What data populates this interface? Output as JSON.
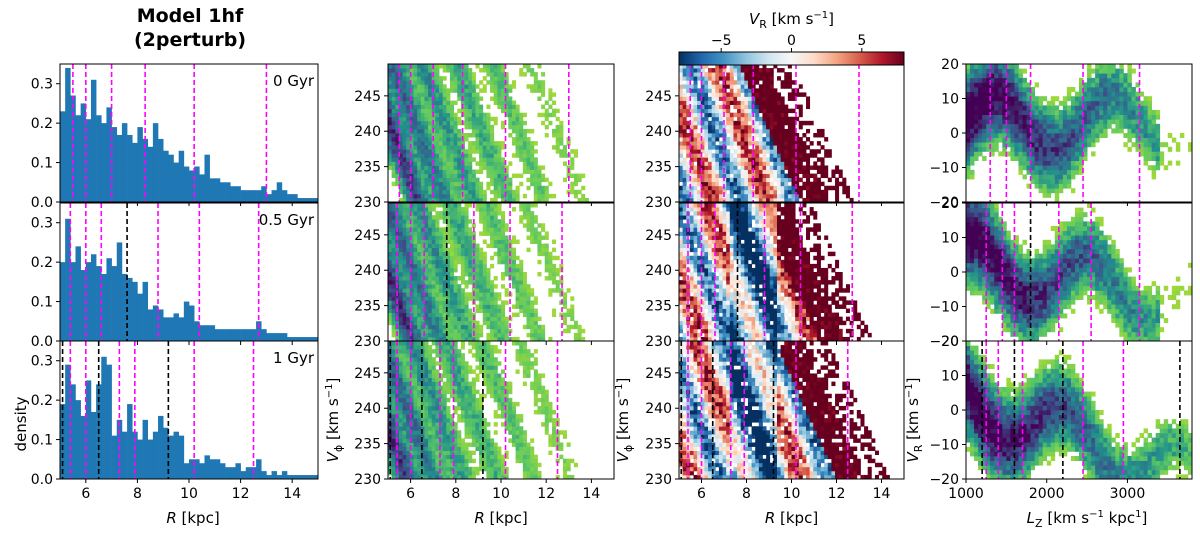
{
  "title_line1": "Model 1hf",
  "title_line2": "(2perturb)",
  "colors": {
    "hist": "#1f77b4",
    "magenta": "#ff00ff",
    "black": "#000000",
    "viridis": [
      "#440154",
      "#3b528b",
      "#21918c",
      "#5ec962",
      "#9fd83a",
      "#fde725"
    ],
    "rdbu": [
      "#053061",
      "#2166ac",
      "#4393c3",
      "#92c5de",
      "#d1e5f0",
      "#f7f7f7",
      "#fddbc7",
      "#f4a582",
      "#d6604d",
      "#b2182b",
      "#67001f"
    ]
  },
  "chart_data": [
    {
      "id": "histograms",
      "type": "bar",
      "ylabel": "density",
      "xlabel_main": "R",
      "xlabel_unit": " [kpc]",
      "xlim": [
        5,
        15
      ],
      "ylim": [
        0,
        0.35
      ],
      "xticks": [
        6,
        8,
        10,
        12,
        14
      ],
      "xtick_labels": [
        "6",
        "8",
        "10",
        "12",
        "14"
      ],
      "yticks": [
        0.0,
        0.1,
        0.2,
        0.3
      ],
      "ytick_labels": [
        "0.0",
        "0.1",
        "0.2",
        "0.3"
      ],
      "bin_edges_start": 5,
      "bin_width": 0.2,
      "rows": [
        {
          "label": "0 Gyr",
          "values": [
            0.23,
            0.34,
            0.27,
            0.22,
            0.25,
            0.21,
            0.31,
            0.22,
            0.2,
            0.24,
            0.19,
            0.17,
            0.2,
            0.17,
            0.15,
            0.19,
            0.16,
            0.14,
            0.2,
            0.16,
            0.13,
            0.12,
            0.1,
            0.13,
            0.09,
            0.08,
            0.09,
            0.07,
            0.12,
            0.06,
            0.06,
            0.05,
            0.05,
            0.04,
            0.04,
            0.03,
            0.03,
            0.03,
            0.03,
            0.04,
            0.02,
            0.03,
            0.05,
            0.03,
            0.02,
            0.02,
            0.01,
            0.01,
            0.01,
            0.01
          ],
          "magenta_lines": [
            5.5,
            6.0,
            7.0,
            8.3,
            10.2,
            13.0
          ],
          "black_lines": []
        },
        {
          "label": "0.5 Gyr",
          "values": [
            0.2,
            0.31,
            0.2,
            0.24,
            0.18,
            0.2,
            0.22,
            0.19,
            0.17,
            0.21,
            0.19,
            0.25,
            0.17,
            0.16,
            0.15,
            0.12,
            0.15,
            0.08,
            0.09,
            0.08,
            0.06,
            0.06,
            0.07,
            0.06,
            0.1,
            0.09,
            0.05,
            0.04,
            0.04,
            0.04,
            0.03,
            0.03,
            0.03,
            0.03,
            0.03,
            0.03,
            0.03,
            0.03,
            0.05,
            0.03,
            0.02,
            0.02,
            0.02,
            0.02,
            0.01,
            0.01,
            0.01,
            0.01,
            0.01,
            0.01
          ],
          "magenta_lines": [
            5.4,
            6.0,
            6.6,
            8.8,
            10.4,
            12.7
          ],
          "black_lines": [
            7.6
          ]
        },
        {
          "label": "1 Gyr",
          "values": [
            0.19,
            0.29,
            0.24,
            0.2,
            0.16,
            0.25,
            0.17,
            0.24,
            0.31,
            0.29,
            0.11,
            0.15,
            0.12,
            0.19,
            0.12,
            0.1,
            0.15,
            0.1,
            0.12,
            0.16,
            0.13,
            0.11,
            0.12,
            0.11,
            0.04,
            0.05,
            0.05,
            0.04,
            0.06,
            0.05,
            0.05,
            0.04,
            0.03,
            0.03,
            0.04,
            0.02,
            0.03,
            0.03,
            0.05,
            0.02,
            0.01,
            0.02,
            0.01,
            0.02,
            0.01,
            0.01,
            0.01,
            0.01,
            0.01,
            0.01
          ],
          "magenta_lines": [
            5.4,
            6.0,
            7.3,
            7.9,
            10.2,
            12.5
          ],
          "black_lines": [
            5.1,
            6.5,
            9.2
          ]
        }
      ]
    },
    {
      "id": "vphi_density",
      "type": "heatmap",
      "ylabel_main": "V",
      "ylabel_sub": "ϕ",
      "ylabel_unit": " [km s",
      "ylabel_exp": "−1",
      "ylabel_close": "]",
      "xlabel_main": "R",
      "xlabel_unit": " [kpc]",
      "xlim": [
        5,
        15
      ],
      "ylim": [
        230,
        249.5
      ],
      "xticks": [
        6,
        8,
        10,
        12,
        14
      ],
      "xtick_labels": [
        "6",
        "8",
        "10",
        "12",
        "14"
      ],
      "yticks": [
        230,
        235,
        240,
        245
      ],
      "ytick_labels": [
        "230",
        "235",
        "240",
        "245"
      ],
      "colormap": "viridis",
      "ridges": [
        [
          5.4,
          2.0
        ],
        [
          6.6,
          1.6
        ],
        [
          7.9,
          1.4
        ],
        [
          9.4,
          1.3
        ],
        [
          11.0,
          1.1
        ],
        [
          12.7,
          0.9
        ]
      ],
      "rows": [
        {
          "magenta_lines": [
            5.5,
            6.0,
            7.0,
            8.3,
            10.2,
            13.0
          ],
          "black_lines": []
        },
        {
          "magenta_lines": [
            5.4,
            6.0,
            6.6,
            8.8,
            10.4,
            12.7
          ],
          "black_lines": [
            7.6
          ]
        },
        {
          "magenta_lines": [
            5.4,
            6.0,
            7.3,
            7.9,
            10.2,
            12.5
          ],
          "black_lines": [
            5.1,
            6.5,
            9.2
          ]
        }
      ]
    },
    {
      "id": "vr_map",
      "type": "heatmap",
      "ylabel_main": "V",
      "ylabel_sub": "ϕ",
      "ylabel_unit": " [km s",
      "ylabel_exp": "−1",
      "ylabel_close": "]",
      "xlabel_main": "R",
      "xlabel_unit": " [kpc]",
      "xlim": [
        5,
        15
      ],
      "ylim": [
        230,
        249.5
      ],
      "xticks": [
        6,
        8,
        10,
        12,
        14
      ],
      "xtick_labels": [
        "6",
        "8",
        "10",
        "12",
        "14"
      ],
      "yticks": [
        230,
        235,
        240,
        245
      ],
      "ytick_labels": [
        "230",
        "235",
        "240",
        "245"
      ],
      "colormap": "RdBu_r",
      "colorbar": {
        "label_main": "V",
        "label_sub": "R",
        "label_unit": " [km s",
        "label_exp": "−1",
        "label_close": "]",
        "vmin": -8,
        "vmax": 8,
        "ticks": [
          -5,
          0,
          5
        ],
        "tick_labels": [
          "−5",
          "0",
          "5"
        ]
      },
      "rows": [
        {
          "magenta_lines": [
            5.5,
            6.0,
            7.0,
            8.3,
            10.2,
            13.0
          ],
          "black_lines": []
        },
        {
          "magenta_lines": [
            5.4,
            6.0,
            6.6,
            8.8,
            10.4,
            12.7
          ],
          "black_lines": [
            7.6
          ]
        },
        {
          "magenta_lines": [
            5.4,
            6.0,
            7.3,
            7.9,
            10.2,
            12.5
          ],
          "black_lines": [
            5.1,
            6.5,
            9.2
          ]
        }
      ]
    },
    {
      "id": "vr_lz",
      "type": "heatmap",
      "ylabel_main": "V",
      "ylabel_sub": "R",
      "ylabel_unit": " [km s",
      "ylabel_exp": "−1",
      "ylabel_close": "]",
      "xlabel_main": "L",
      "xlabel_sub": "Z",
      "xlabel_unit": "  [km s",
      "xlabel_exp": "−1",
      "xlabel_mid": " kpc",
      "xlabel_exp2": "1",
      "xlabel_close": "]",
      "xlim": [
        1000,
        3800
      ],
      "ylim": [
        -20,
        20
      ],
      "xticks": [
        1000,
        2000,
        3000
      ],
      "xtick_labels": [
        "1000",
        "2000",
        "3000"
      ],
      "yticks": [
        -20,
        -10,
        0,
        10,
        20
      ],
      "ytick_labels": [
        "−20",
        "−10",
        "0",
        "10",
        "20"
      ],
      "colormap": "viridis",
      "rows": [
        {
          "magenta_lines": [
            1300,
            1500,
            1800,
            2450,
            3150
          ],
          "black_lines": []
        },
        {
          "magenta_lines": [
            1250,
            1450,
            1600,
            2150,
            2550,
            3150
          ],
          "black_lines": [
            1800
          ]
        },
        {
          "magenta_lines": [
            1250,
            1400,
            1700,
            2450,
            2950
          ],
          "black_lines": [
            1200,
            1600,
            2200,
            3650
          ]
        }
      ]
    }
  ]
}
